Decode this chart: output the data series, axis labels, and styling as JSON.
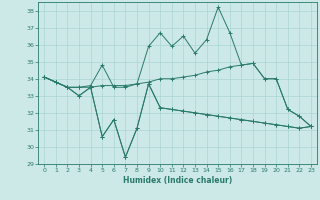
{
  "xlabel": "Humidex (Indice chaleur)",
  "bg_color": "#cce9e8",
  "grid_color": "#aad4d3",
  "line_color": "#2a7a6a",
  "xlim": [
    -0.5,
    23.5
  ],
  "ylim": [
    29,
    38.5
  ],
  "yticks": [
    29,
    30,
    31,
    32,
    33,
    34,
    35,
    36,
    37,
    38
  ],
  "xticks": [
    0,
    1,
    2,
    3,
    4,
    5,
    6,
    7,
    8,
    9,
    10,
    11,
    12,
    13,
    14,
    15,
    16,
    17,
    18,
    19,
    20,
    21,
    22,
    23
  ],
  "line1_x": [
    0,
    1,
    2,
    3,
    4,
    5,
    6,
    7,
    8,
    9,
    10,
    11,
    12,
    13,
    14,
    15,
    16,
    17,
    18,
    19,
    20,
    21,
    22,
    23
  ],
  "line1_y": [
    34.1,
    33.8,
    33.5,
    33.5,
    33.6,
    34.8,
    33.5,
    33.5,
    33.7,
    35.9,
    36.7,
    35.9,
    36.5,
    35.5,
    36.3,
    38.2,
    36.7,
    34.8,
    34.9,
    34.0,
    34.0,
    32.2,
    31.8,
    31.2
  ],
  "line2_x": [
    0,
    1,
    2,
    3,
    4,
    5,
    6,
    7,
    8,
    9,
    10,
    11,
    12,
    13,
    14,
    15,
    16,
    17,
    18,
    19,
    20,
    21,
    22,
    23
  ],
  "line2_y": [
    34.1,
    33.8,
    33.5,
    33.5,
    33.5,
    33.6,
    33.6,
    33.6,
    33.7,
    33.8,
    34.0,
    34.0,
    34.1,
    34.2,
    34.4,
    34.5,
    34.7,
    34.8,
    34.9,
    34.0,
    34.0,
    32.2,
    31.8,
    31.2
  ],
  "line3_x": [
    0,
    1,
    2,
    3,
    4,
    5,
    6,
    7,
    8,
    9,
    10,
    11,
    12,
    13,
    14,
    15,
    16,
    17,
    18,
    19,
    20,
    21,
    22,
    23
  ],
  "line3_y": [
    34.1,
    33.8,
    33.5,
    33.0,
    33.5,
    30.6,
    31.6,
    29.4,
    31.1,
    33.7,
    32.3,
    32.2,
    32.1,
    32.0,
    31.9,
    31.8,
    31.7,
    31.6,
    31.5,
    31.4,
    31.3,
    31.2,
    31.1,
    31.2
  ],
  "line4_x": [
    0,
    1,
    2,
    3,
    4,
    5,
    6,
    7,
    8,
    9,
    10,
    11,
    12,
    13,
    14,
    15,
    16,
    17,
    18,
    19,
    20,
    21,
    22,
    23
  ],
  "line4_y": [
    34.1,
    33.8,
    33.5,
    33.0,
    33.5,
    30.6,
    31.6,
    29.4,
    31.1,
    33.7,
    32.3,
    32.2,
    32.1,
    32.0,
    31.9,
    31.8,
    31.7,
    31.6,
    31.5,
    31.4,
    31.3,
    31.2,
    31.1,
    31.2
  ]
}
